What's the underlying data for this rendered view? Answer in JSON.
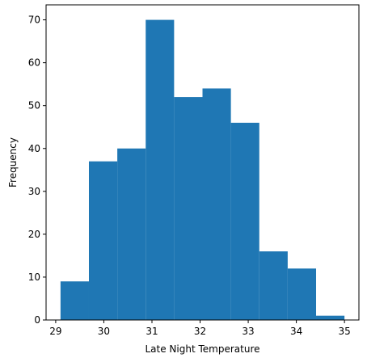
{
  "chart_data": {
    "type": "bar",
    "title": "",
    "xlabel": "Late Night Temperature",
    "ylabel": "Frequency",
    "bin_edges": [
      29.1,
      29.69,
      30.28,
      30.87,
      31.46,
      32.05,
      32.64,
      33.23,
      33.82,
      34.41,
      35.0
    ],
    "values": [
      9,
      37,
      40,
      70,
      52,
      54,
      46,
      16,
      12,
      1
    ],
    "xlim": [
      28.8,
      35.3
    ],
    "ylim": [
      0,
      73.5
    ],
    "xticks": [
      29,
      30,
      31,
      32,
      33,
      34,
      35
    ],
    "yticks": [
      0,
      10,
      20,
      30,
      40,
      50,
      60,
      70
    ],
    "bar_color": "#1f77b4",
    "grid": false,
    "legend": "none"
  }
}
